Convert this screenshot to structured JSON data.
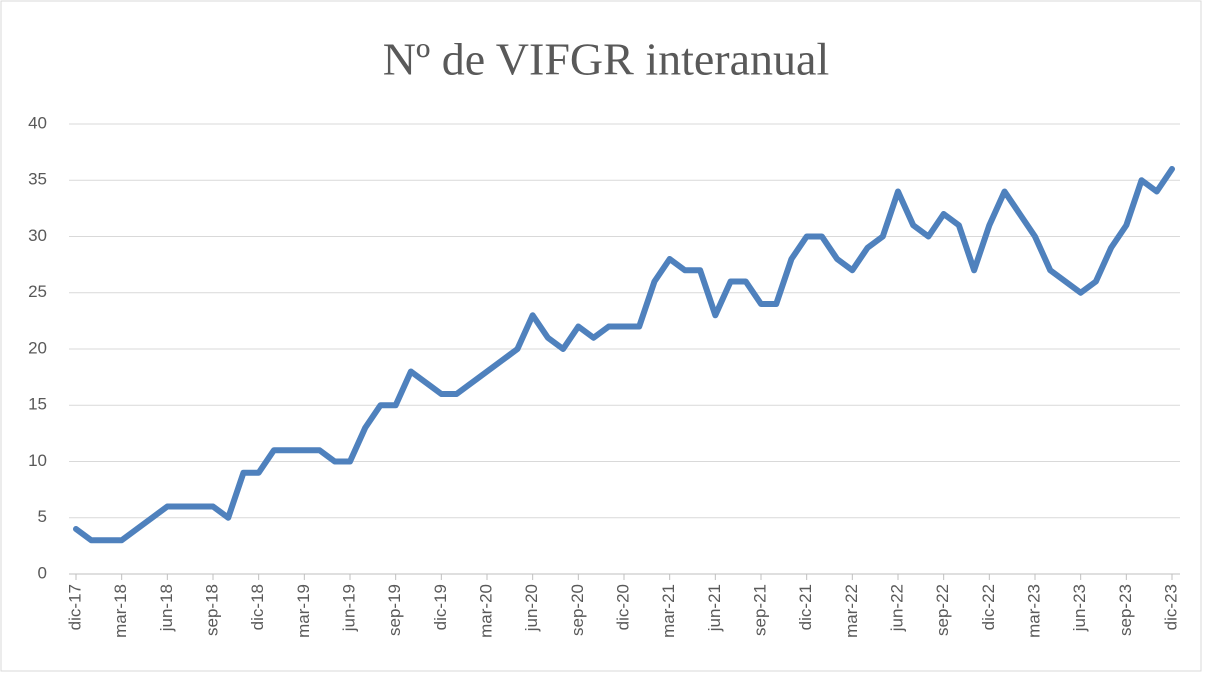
{
  "chart_data": {
    "type": "line",
    "title": "Nº de VIFGR interanual",
    "categories": [
      "dic-17",
      null,
      null,
      "mar-18",
      null,
      null,
      "jun-18",
      null,
      null,
      "sep-18",
      null,
      null,
      "dic-18",
      null,
      null,
      "mar-19",
      null,
      null,
      "jun-19",
      null,
      null,
      "sep-19",
      null,
      null,
      "dic-19",
      null,
      null,
      "mar-20",
      null,
      null,
      "jun-20",
      null,
      null,
      "sep-20",
      null,
      null,
      "dic-20",
      null,
      null,
      "mar-21",
      null,
      null,
      "jun-21",
      null,
      null,
      "sep-21",
      null,
      null,
      "dic-21",
      null,
      null,
      "mar-22",
      null,
      null,
      "jun-22",
      null,
      null,
      "sep-22",
      null,
      null,
      "dic-22",
      null,
      null,
      "mar-23",
      null,
      null,
      "jun-23",
      null,
      null,
      "sep-23",
      null,
      null,
      "dic-23"
    ],
    "values": [
      4,
      3,
      3,
      3,
      4,
      5,
      6,
      6,
      6,
      6,
      5,
      9,
      9,
      11,
      11,
      11,
      11,
      10,
      10,
      13,
      15,
      15,
      18,
      17,
      16,
      16,
      17,
      18,
      19,
      20,
      23,
      21,
      20,
      22,
      21,
      22,
      22,
      22,
      26,
      28,
      27,
      27,
      23,
      26,
      26,
      24,
      24,
      28,
      30,
      30,
      28,
      27,
      29,
      30,
      34,
      31,
      30,
      32,
      31,
      27,
      31,
      34,
      32,
      30,
      27,
      26,
      25,
      26,
      29,
      31,
      35,
      34,
      36
    ],
    "color": "#4f81bd",
    "ylim": [
      0,
      40
    ],
    "yticks": [
      0,
      5,
      10,
      15,
      20,
      25,
      30,
      35,
      40
    ],
    "grid": true
  }
}
